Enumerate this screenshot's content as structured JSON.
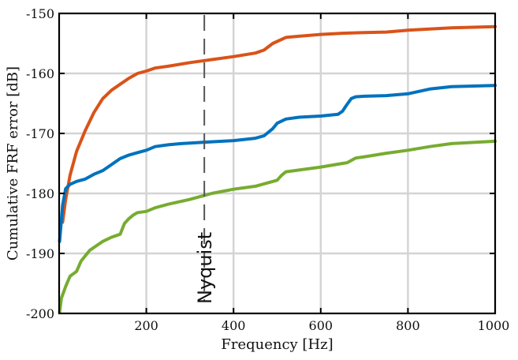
{
  "chart_data": {
    "type": "line",
    "xlabel": "Frequency [Hz]",
    "ylabel": "Cumulative FRF error [dB]",
    "xlim": [
      0,
      1000
    ],
    "ylim": [
      -200,
      -150
    ],
    "x_ticks": [
      200,
      400,
      600,
      800,
      1000
    ],
    "x_tick_labels": [
      "200",
      "400",
      "600",
      "800",
      "1000"
    ],
    "y_ticks": [
      -200,
      -190,
      -180,
      -170,
      -160,
      -150
    ],
    "y_tick_labels": [
      "-200",
      "-190",
      "-180",
      "-170",
      "-160",
      "-150"
    ],
    "grid": true,
    "legend": "none",
    "annotation": {
      "text": "Nyquist",
      "x": 333,
      "style": "dashed vertical line"
    },
    "series": [
      {
        "color": "#d95319",
        "x": [
          8,
          15,
          25,
          40,
          60,
          80,
          100,
          120,
          140,
          160,
          180,
          200,
          220,
          250,
          300,
          350,
          400,
          450,
          470,
          490,
          520,
          550,
          600,
          650,
          700,
          750,
          800,
          850,
          900,
          950,
          1000
        ],
        "y": [
          -184.8,
          -181,
          -177,
          -173,
          -169.5,
          -166.5,
          -164.2,
          -162.8,
          -161.8,
          -160.8,
          -160,
          -159.6,
          -159.1,
          -158.8,
          -158.2,
          -157.7,
          -157.2,
          -156.6,
          -156.1,
          -155,
          -154,
          -153.8,
          -153.5,
          -153.3,
          -153.2,
          -153.1,
          -152.8,
          -152.6,
          -152.4,
          -152.3,
          -152.2
        ]
      },
      {
        "color": "#0072bd",
        "x": [
          1,
          8,
          15,
          25,
          40,
          60,
          80,
          100,
          120,
          140,
          160,
          180,
          200,
          220,
          250,
          280,
          300,
          350,
          400,
          450,
          470,
          490,
          500,
          520,
          550,
          600,
          640,
          650,
          660,
          670,
          680,
          700,
          750,
          800,
          850,
          900,
          950,
          1000
        ],
        "y": [
          -188,
          -182,
          -179.2,
          -178.5,
          -178,
          -177.6,
          -176.8,
          -176.2,
          -175.2,
          -174.2,
          -173.6,
          -173.2,
          -172.8,
          -172.2,
          -171.9,
          -171.7,
          -171.6,
          -171.4,
          -171.2,
          -170.8,
          -170.4,
          -169.2,
          -168.3,
          -167.6,
          -167.3,
          -167.1,
          -166.8,
          -166.3,
          -165.2,
          -164.2,
          -163.9,
          -163.8,
          -163.7,
          -163.4,
          -162.6,
          -162.2,
          -162.1,
          -162
        ]
      },
      {
        "color": "#77ac30",
        "x": [
          1,
          5,
          15,
          25,
          40,
          50,
          60,
          70,
          80,
          100,
          120,
          140,
          150,
          160,
          170,
          180,
          200,
          220,
          250,
          300,
          350,
          400,
          450,
          500,
          510,
          520,
          550,
          600,
          650,
          660,
          670,
          680,
          700,
          750,
          800,
          850,
          900,
          950,
          1000
        ],
        "y": [
          -199.8,
          -197.5,
          -195.5,
          -193.8,
          -193,
          -191.3,
          -190.4,
          -189.5,
          -189,
          -188,
          -187.3,
          -186.8,
          -185,
          -184.2,
          -183.6,
          -183.2,
          -183,
          -182.4,
          -181.8,
          -181,
          -180,
          -179.3,
          -178.8,
          -177.8,
          -177,
          -176.4,
          -176.1,
          -175.6,
          -175,
          -174.9,
          -174.5,
          -174.1,
          -173.9,
          -173.3,
          -172.8,
          -172.2,
          -171.7,
          -171.5,
          -171.3
        ]
      }
    ]
  }
}
